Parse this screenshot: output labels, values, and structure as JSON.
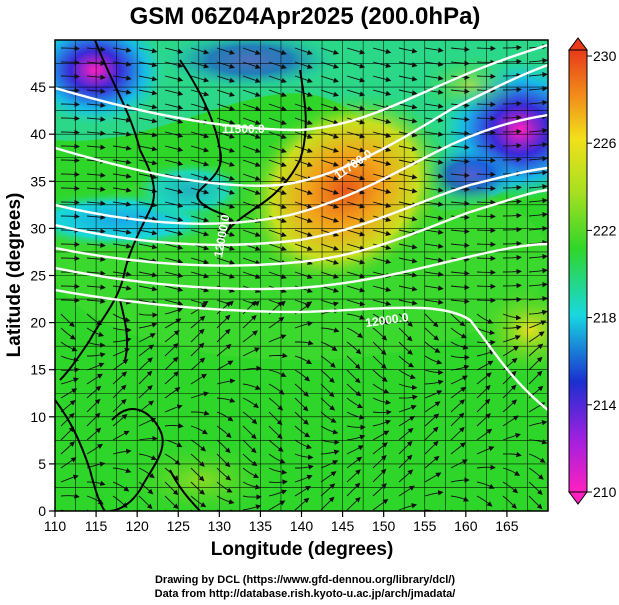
{
  "title": "GSM 06Z04Apr2025 (200.0hPa)",
  "xlabel": "Longitude (degrees)",
  "ylabel": "Latitude  (degrees)",
  "credits": [
    "Drawing by DCL (https://www.gfd-dennou.org/library/dcl/)",
    "Data from http://database.rish.kyoto-u.ac.jp/arch/jmadata/"
  ],
  "chart_data": {
    "type": "heatmap",
    "title": "GSM 06Z04Apr2025 (200.0hPa)",
    "xlabel": "Longitude (degrees)",
    "ylabel": "Latitude  (degrees)",
    "xlim": [
      110,
      170
    ],
    "ylim": [
      0,
      50
    ],
    "x_ticks": [
      "110",
      "115",
      "120",
      "125",
      "130",
      "135",
      "140",
      "145",
      "150",
      "155",
      "160",
      "165"
    ],
    "y_ticks": [
      "0",
      "5",
      "10",
      "15",
      "20",
      "25",
      "30",
      "35",
      "40",
      "45"
    ],
    "grid": true,
    "colorbar": {
      "range": [
        210,
        230
      ],
      "tick_labels": [
        "230",
        "226",
        "222",
        "218",
        "214",
        "210"
      ],
      "placement": "right"
    },
    "contour_labels": [
      {
        "text": "11500.0",
        "lon": 136.5,
        "lat": 42.5
      },
      {
        "text": "11700.0",
        "lon": 145.0,
        "lat": 37.0
      },
      {
        "text": "12000.0",
        "lon": 134.0,
        "lat": 30.5
      },
      {
        "text": "12000.0",
        "lon": 151.0,
        "lat": 21.0
      }
    ],
    "warm_core_lonlat": [
      146,
      35
    ],
    "cold_cores_lonlat": [
      [
        115,
        48
      ],
      [
        167,
        40
      ],
      [
        124,
        33
      ]
    ],
    "colors": {
      "magenta": "#ff20c0",
      "blue": "#1a2fd0",
      "cyan": "#18d8e0",
      "green": "#2fd62a",
      "yellow": "#f2e01a",
      "orange": "#f28a1a",
      "red": "#e83a1a"
    }
  }
}
